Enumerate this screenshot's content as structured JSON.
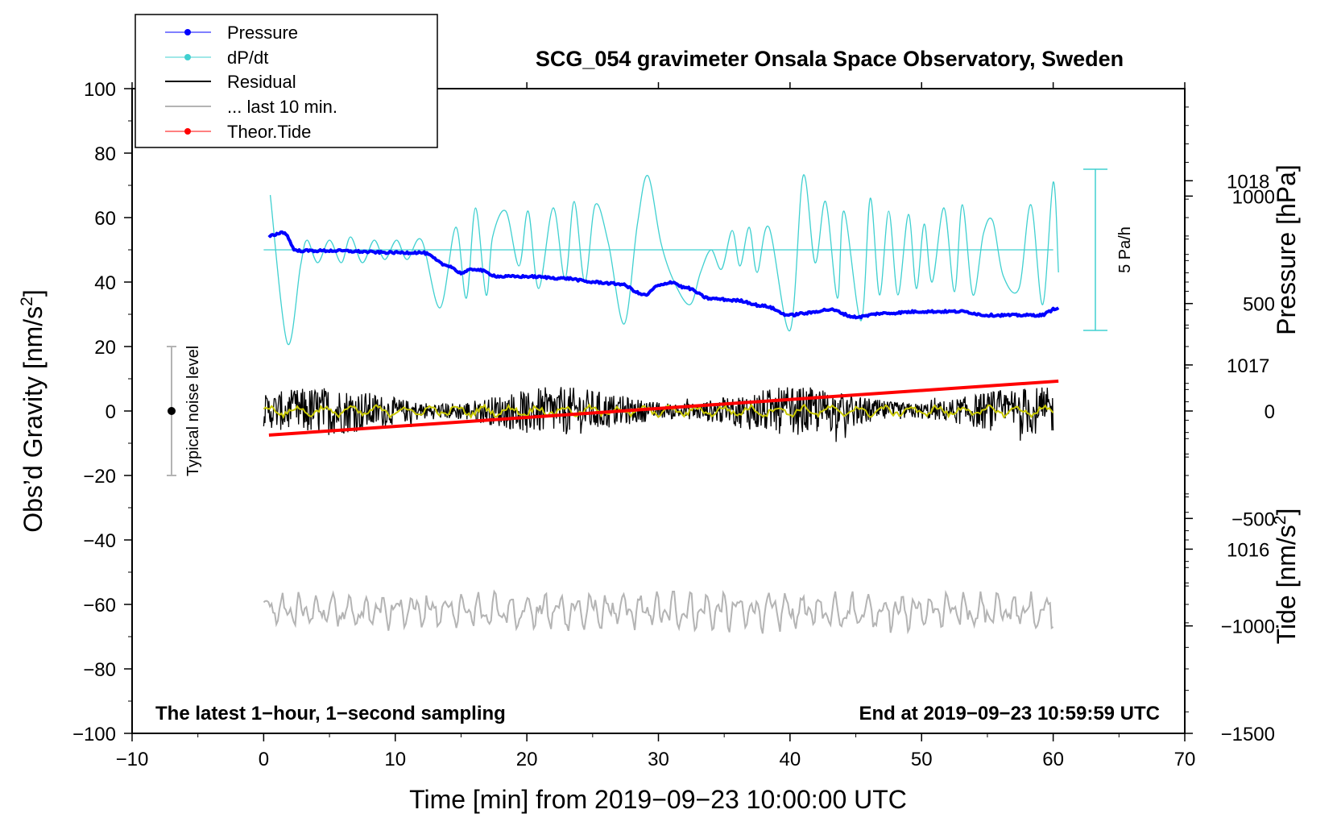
{
  "chart_data": {
    "type": "line",
    "title": "SCG_054 gravimeter Onsala Space Observatory, Sweden",
    "xlabel": "Time [min] from 2019−09−23 10:00:00 UTC",
    "ylabel_main": "Obs’d Gravity [nm/s",
    "ylabel_main_sup": "2",
    "ylabel_main_close": "]",
    "ylabel_pressure": "Pressure [hPa]",
    "ylabel_tide": "Tide [nm/s",
    "ylabel_tide_sup": "2",
    "ylabel_tide_close": "]",
    "xlim": [
      -10,
      70
    ],
    "ylim": [
      -100,
      100
    ],
    "pressure_lim": [
      1015.0,
      1018.5
    ],
    "tide_lim": [
      -1500,
      1500
    ],
    "xticks": [
      "−10",
      "0",
      "10",
      "20",
      "30",
      "40",
      "50",
      "60",
      "70"
    ],
    "yticks": [
      "−100",
      "−80",
      "−60",
      "−40",
      "−20",
      "0",
      "20",
      "40",
      "60",
      "80",
      "100"
    ],
    "pressure_ticks": [
      "1016",
      "1017",
      "1018"
    ],
    "tide_ticks": [
      "−1500",
      "−1000",
      "−500",
      "0",
      "500",
      "1000"
    ],
    "bottom_left_note": "The latest 1−hour, 1−second sampling",
    "bottom_right_note": "End at 2019−09−23 10:59:59 UTC",
    "noise_label": "Typical noise level",
    "noise_bar": {
      "x": -7,
      "center": 0,
      "half_range": 20
    },
    "dpdt_scale_label": "5 Pa/h",
    "legend": [
      "Pressure",
      "dP/dt",
      "Residual",
      "... last 10 min.",
      "Theor.Tide"
    ],
    "colors": {
      "pressure": "#0000ff",
      "dpdt": "#40d0d0",
      "residual": "#000000",
      "residual_smooth": "#c8c800",
      "last10": "#b4b4b4",
      "tide": "#ff0000",
      "noise": "#b4b4b4"
    },
    "series": [
      {
        "name": "Pressure",
        "unit": "hPa",
        "x": [
          0.4,
          1.5,
          2.5,
          5,
          10,
          12,
          14,
          15,
          16,
          18,
          20,
          23,
          25,
          27,
          29,
          30,
          31,
          32,
          34,
          36,
          38,
          40,
          41,
          43,
          45,
          47,
          50,
          53,
          55,
          57,
          59,
          60.4
        ],
        "values": [
          1017.7,
          1017.72,
          1017.62,
          1017.62,
          1017.61,
          1017.61,
          1017.54,
          1017.5,
          1017.52,
          1017.48,
          1017.48,
          1017.47,
          1017.45,
          1017.44,
          1017.38,
          1017.43,
          1017.45,
          1017.42,
          1017.36,
          1017.35,
          1017.32,
          1017.27,
          1017.28,
          1017.3,
          1017.26,
          1017.28,
          1017.29,
          1017.29,
          1017.27,
          1017.27,
          1017.27,
          1017.31
        ]
      },
      {
        "name": "dP/dt",
        "unit": "nm/s2 plot units",
        "zero_line": 50,
        "x": [
          0.5,
          1.8,
          2.8,
          3.3,
          4.1,
          5.0,
          5.9,
          6.6,
          7.5,
          8.4,
          9.2,
          10.1,
          10.9,
          12.0,
          13.4,
          14.6,
          15.4,
          16.1,
          16.9,
          17.4,
          18.4,
          19.4,
          20.1,
          20.9,
          22.0,
          22.9,
          23.6,
          24.4,
          25.2,
          26.2,
          27.4,
          28.4,
          29.2,
          30.2,
          31.2,
          32.4,
          33.2,
          34.0,
          34.8,
          35.6,
          36.2,
          36.9,
          37.5,
          38.4,
          40.0,
          41.0,
          41.9,
          42.7,
          43.6,
          44.1,
          45.4,
          46.1,
          46.8,
          47.5,
          48.2,
          49.0,
          49.6,
          50.2,
          50.8,
          51.7,
          52.5,
          53.1,
          53.9,
          54.7,
          55.4,
          56.2,
          57.4,
          58.3,
          59.2,
          60.0,
          60.4
        ],
        "values": [
          67,
          21,
          45,
          53,
          46,
          53,
          46,
          54,
          46,
          53,
          47,
          53,
          47,
          53,
          32,
          57,
          35,
          63,
          36,
          54,
          62,
          45,
          62,
          38,
          63,
          41,
          65,
          40,
          64,
          52,
          27,
          58,
          73,
          52,
          40,
          33,
          43,
          50,
          44,
          56,
          45,
          57,
          43,
          57,
          25,
          73,
          46,
          65,
          35,
          62,
          28,
          66,
          36,
          62,
          36,
          61,
          38,
          58,
          40,
          63,
          37,
          64,
          36,
          55,
          59,
          42,
          38,
          64,
          33,
          71,
          43
        ]
      },
      {
        "name": "Residual",
        "unit": "nm/s2",
        "x_range": [
          0,
          60
        ],
        "center": 0,
        "amplitude_range": [
          -10,
          12
        ]
      },
      {
        "name": "... last 10 min.",
        "unit": "nm/s2 plot units",
        "x_range": [
          0,
          60
        ],
        "center": -62,
        "amplitude_range": [
          -71,
          -56
        ]
      },
      {
        "name": "Theor.Tide",
        "unit": "nm/s2",
        "x": [
          0.4,
          60.4
        ],
        "values": [
          -112,
          139
        ]
      }
    ]
  }
}
